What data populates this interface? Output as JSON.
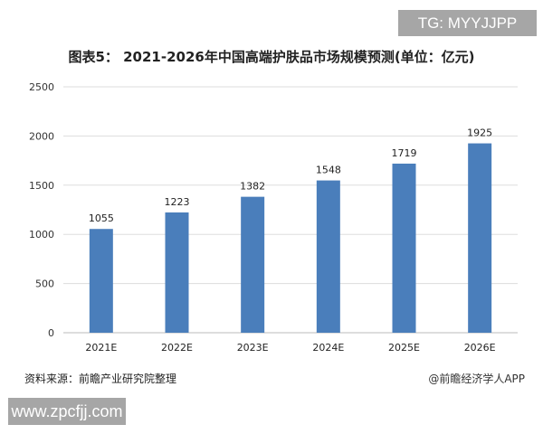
{
  "watermark_tg": "TG: MYYJJPP",
  "watermark_site": "www.zpcfjj.com",
  "source": "资料来源：前瞻产业研究院整理",
  "brand": "@前瞻经济学人APP",
  "chart_data": {
    "type": "bar",
    "title": "图表5： 2021-2026年中国高端护肤品市场规模预测(单位：亿元)",
    "categories": [
      "2021E",
      "2022E",
      "2023E",
      "2024E",
      "2025E",
      "2026E"
    ],
    "values": [
      1055,
      1223,
      1382,
      1548,
      1719,
      1925
    ],
    "ylim": [
      0,
      2500
    ],
    "yticks": [
      0,
      500,
      1000,
      1500,
      2000,
      2500
    ],
    "grid": true,
    "bar_color": "#4a7ebb"
  }
}
